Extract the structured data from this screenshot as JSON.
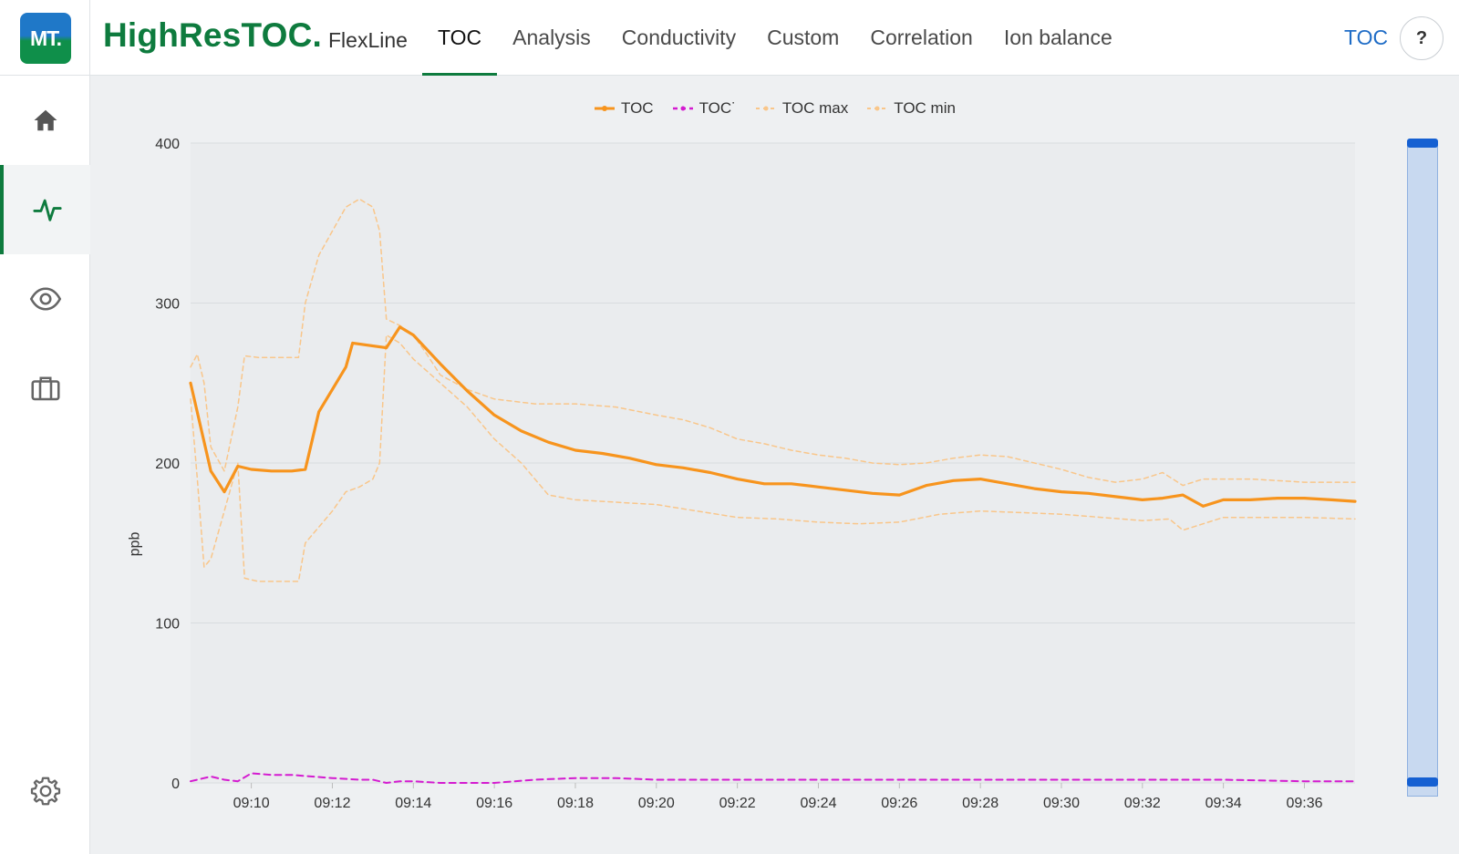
{
  "header": {
    "logo_text": "MT.",
    "brand_prefix": "HighRes",
    "brand_suffix": "TOC.",
    "product": "FlexLine",
    "tabs": [
      {
        "label": "TOC",
        "active": true
      },
      {
        "label": "Analysis"
      },
      {
        "label": "Conductivity"
      },
      {
        "label": "Custom"
      },
      {
        "label": "Correlation"
      },
      {
        "label": "Ion balance"
      }
    ],
    "right_label": "TOC",
    "help_label": "?"
  },
  "sidebar": {
    "items": [
      {
        "icon": "home-icon"
      },
      {
        "icon": "activity-icon",
        "active": true
      },
      {
        "icon": "eye-icon"
      },
      {
        "icon": "briefcase-icon"
      },
      {
        "icon": "gear-icon"
      }
    ]
  },
  "colors": {
    "brand_green": "#0e7b3e",
    "toc_line": "#f7941d",
    "toc_dot_line": "#d41bd0",
    "toc_band": "#f9c68a",
    "link_blue": "#1f6cc6",
    "scroll_blue": "#1560d2"
  },
  "chart_data": {
    "type": "line",
    "ylabel": "ppb",
    "ylim": [
      0,
      400
    ],
    "yticks": [
      0,
      100,
      200,
      300,
      400
    ],
    "xlim": [
      "09:08:30",
      "09:37:15"
    ],
    "xticks": [
      "09:10",
      "09:12",
      "09:14",
      "09:16",
      "09:18",
      "09:20",
      "09:22",
      "09:24",
      "09:26",
      "09:28",
      "09:30",
      "09:32",
      "09:34",
      "09:36"
    ],
    "legend_position": "top",
    "grid": true,
    "series": [
      {
        "name": "TOC",
        "style": "solid",
        "x": [
          "09:08:30",
          "09:09:00",
          "09:09:20",
          "09:09:40",
          "09:10:00",
          "09:10:30",
          "09:11:00",
          "09:11:20",
          "09:11:40",
          "09:12:20",
          "09:12:30",
          "09:13:20",
          "09:13:40",
          "09:14:00",
          "09:14:40",
          "09:15:20",
          "09:16:00",
          "09:16:40",
          "09:17:20",
          "09:18:00",
          "09:18:40",
          "09:19:20",
          "09:20:00",
          "09:20:40",
          "09:21:20",
          "09:22:00",
          "09:22:40",
          "09:23:20",
          "09:24:00",
          "09:24:40",
          "09:25:20",
          "09:26:00",
          "09:26:40",
          "09:27:20",
          "09:28:00",
          "09:28:40",
          "09:29:20",
          "09:30:00",
          "09:30:40",
          "09:31:20",
          "09:32:00",
          "09:32:30",
          "09:33:00",
          "09:33:30",
          "09:34:00",
          "09:34:40",
          "09:35:20",
          "09:36:00",
          "09:36:40",
          "09:37:15"
        ],
        "values": [
          250,
          195,
          182,
          198,
          196,
          195,
          195,
          196,
          232,
          260,
          275,
          272,
          285,
          280,
          262,
          245,
          230,
          220,
          213,
          208,
          206,
          203,
          199,
          197,
          194,
          190,
          187,
          187,
          185,
          183,
          181,
          180,
          186,
          189,
          190,
          187,
          184,
          182,
          181,
          179,
          177,
          178,
          180,
          173,
          177,
          177,
          178,
          178,
          177,
          176
        ]
      },
      {
        "name": "TOC˙",
        "style": "dashed",
        "x": [
          "09:08:30",
          "09:09:00",
          "09:09:20",
          "09:09:40",
          "09:10:00",
          "09:10:30",
          "09:11:00",
          "09:11:30",
          "09:12:00",
          "09:12:40",
          "09:13:00",
          "09:13:20",
          "09:13:40",
          "09:14:00",
          "09:14:40",
          "09:15:20",
          "09:16:00",
          "09:17:00",
          "09:18:00",
          "09:19:00",
          "09:20:00",
          "09:22:00",
          "09:24:00",
          "09:26:00",
          "09:28:00",
          "09:30:00",
          "09:32:00",
          "09:34:00",
          "09:36:00",
          "09:37:15"
        ],
        "values": [
          1,
          4,
          2,
          1,
          6,
          5,
          5,
          4,
          3,
          2,
          2,
          0,
          1,
          1,
          0,
          0,
          0,
          2,
          3,
          3,
          2,
          2,
          2,
          2,
          2,
          2,
          2,
          2,
          1,
          1
        ]
      },
      {
        "name": "TOC max",
        "style": "dotted",
        "x": [
          "09:08:30",
          "09:08:40",
          "09:08:50",
          "09:09:00",
          "09:09:20",
          "09:09:40",
          "09:09:50",
          "09:10:10",
          "09:10:40",
          "09:11:10",
          "09:11:20",
          "09:11:40",
          "09:12:00",
          "09:12:20",
          "09:12:40",
          "09:13:00",
          "09:13:10",
          "09:13:20",
          "09:13:40",
          "09:14:00",
          "09:14:20",
          "09:14:40",
          "09:15:20",
          "09:16:00",
          "09:17:00",
          "09:18:00",
          "09:19:00",
          "09:20:00",
          "09:20:40",
          "09:21:20",
          "09:22:00",
          "09:22:40",
          "09:23:20",
          "09:24:00",
          "09:24:40",
          "09:25:20",
          "09:26:00",
          "09:26:40",
          "09:27:20",
          "09:28:00",
          "09:28:40",
          "09:29:20",
          "09:30:00",
          "09:30:40",
          "09:31:20",
          "09:32:00",
          "09:32:30",
          "09:33:00",
          "09:33:30",
          "09:34:00",
          "09:34:40",
          "09:35:20",
          "09:36:00",
          "09:37:15"
        ],
        "values": [
          260,
          268,
          250,
          210,
          195,
          235,
          267,
          266,
          266,
          266,
          300,
          330,
          345,
          360,
          365,
          360,
          345,
          290,
          286,
          280,
          268,
          255,
          246,
          240,
          237,
          237,
          235,
          230,
          227,
          222,
          215,
          212,
          208,
          205,
          203,
          200,
          199,
          200,
          203,
          205,
          204,
          200,
          196,
          191,
          188,
          190,
          194,
          186,
          190,
          190,
          190,
          189,
          188,
          188
        ]
      },
      {
        "name": "TOC min",
        "style": "dotted",
        "x": [
          "09:08:30",
          "09:08:40",
          "09:08:50",
          "09:09:00",
          "09:09:20",
          "09:09:40",
          "09:09:50",
          "09:10:10",
          "09:10:40",
          "09:11:10",
          "09:11:20",
          "09:11:40",
          "09:12:00",
          "09:12:20",
          "09:12:40",
          "09:13:00",
          "09:13:10",
          "09:13:20",
          "09:13:40",
          "09:14:00",
          "09:14:40",
          "09:15:20",
          "09:16:00",
          "09:16:40",
          "09:17:20",
          "09:18:00",
          "09:18:40",
          "09:19:20",
          "09:20:00",
          "09:21:00",
          "09:22:00",
          "09:23:00",
          "09:24:00",
          "09:25:00",
          "09:26:00",
          "09:27:00",
          "09:28:00",
          "09:29:00",
          "09:30:00",
          "09:31:00",
          "09:32:00",
          "09:32:40",
          "09:33:00",
          "09:33:30",
          "09:34:00",
          "09:35:00",
          "09:36:00",
          "09:37:15"
        ],
        "values": [
          240,
          190,
          135,
          140,
          170,
          200,
          128,
          126,
          126,
          126,
          150,
          160,
          170,
          182,
          185,
          190,
          200,
          280,
          275,
          265,
          250,
          235,
          215,
          200,
          180,
          177,
          176,
          175,
          174,
          170,
          166,
          165,
          163,
          162,
          163,
          168,
          170,
          169,
          168,
          166,
          164,
          165,
          158,
          162,
          166,
          166,
          166,
          165
        ]
      }
    ]
  }
}
